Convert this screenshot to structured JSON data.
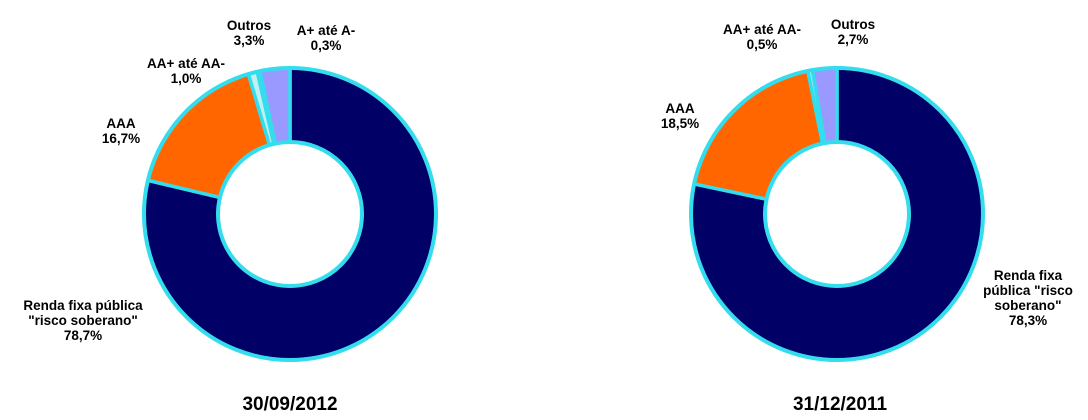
{
  "chart_data": [
    {
      "type": "pie",
      "title": "30/09/2012",
      "slices": [
        {
          "name": "Renda fixa pública \"risco soberano\"",
          "value_label": "78,7%",
          "value": 78.7,
          "color": "#000066"
        },
        {
          "name": "AAA",
          "value_label": "16,7%",
          "value": 16.7,
          "color": "#ff6600"
        },
        {
          "name": "AA+  até AA-",
          "value_label": "1,0%",
          "value": 1.0,
          "color": "#c0f0f0"
        },
        {
          "name": "A+  até A-",
          "value_label": "0,3%",
          "value": 0.3,
          "color": "#33cccc"
        },
        {
          "name": "Outros",
          "value_label": "3,3%",
          "value": 3.3,
          "color": "#9999ff"
        }
      ]
    },
    {
      "type": "pie",
      "title": "31/12/2011",
      "slices": [
        {
          "name": "Renda fixa pública \"risco soberano\"",
          "value_label": "78,3%",
          "value": 78.3,
          "color": "#000066"
        },
        {
          "name": "AAA",
          "value_label": "18,5%",
          "value": 18.5,
          "color": "#ff6600"
        },
        {
          "name": "AA+  até AA-",
          "value_label": "0,5%",
          "value": 0.5,
          "color": "#c0f0f0"
        },
        {
          "name": "Outros",
          "value_label": "2,7%",
          "value": 2.7,
          "color": "#9999ff"
        }
      ]
    }
  ],
  "labels": {
    "c1": {
      "renda_l1": "Renda fixa pública",
      "renda_l2": "\"risco soberano\"",
      "renda_v": "78,7%",
      "aaa": "AAA",
      "aaa_v": "16,7%",
      "aa": "AA+  até AA-",
      "aa_v": "1,0%",
      "outros": "Outros",
      "outros_v": "3,3%",
      "a": "A+  até A-",
      "a_v": "0,3%",
      "date": "30/09/2012"
    },
    "c2": {
      "renda_l1": "Renda fixa",
      "renda_l2": "pública \"risco",
      "renda_l3": "soberano\"",
      "renda_v": "78,3%",
      "aaa": "AAA",
      "aaa_v": "18,5%",
      "aa": "AA+  até AA-",
      "aa_v": "0,5%",
      "outros": "Outros",
      "outros_v": "2,7%",
      "date": "31/12/2011"
    }
  },
  "colors": {
    "ring_edge": "#33ddee",
    "sovereign": "#000066",
    "aaa": "#ff6600",
    "aa": "#c0f0f0",
    "a": "#33cccc",
    "outros": "#9999ff"
  }
}
